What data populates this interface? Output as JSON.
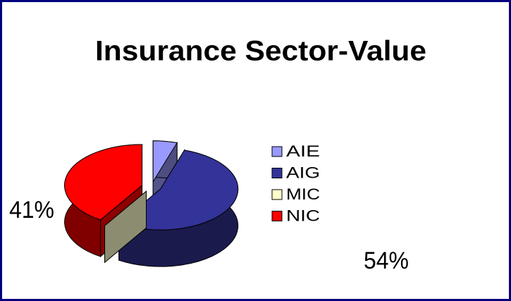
{
  "chart_data": {
    "type": "pie",
    "title": "Insurance Sector-Value",
    "categories": [
      "AIE",
      "AIG",
      "MIC",
      "NIC"
    ],
    "values": [
      5,
      54,
      0,
      41
    ],
    "value_labels": [
      null,
      "54%",
      null,
      "41%"
    ],
    "colors": [
      "#9999ff",
      "#333399",
      "#ffffcc",
      "#ff0000"
    ],
    "legend": "right",
    "three_d": true
  }
}
